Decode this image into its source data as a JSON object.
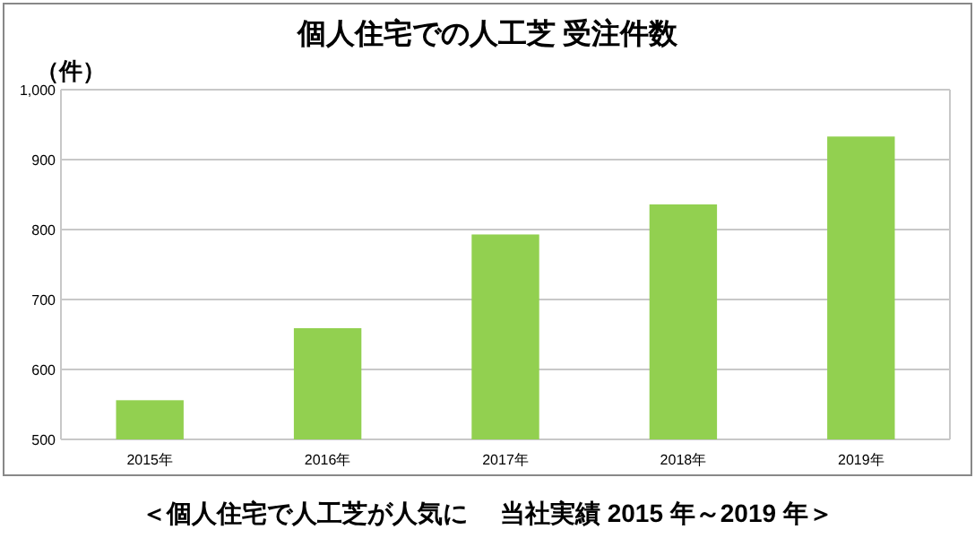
{
  "chart_data": {
    "type": "bar",
    "title": "個人住宅での人工芝 受注件数",
    "ylabel": "（件）",
    "categories": [
      "2015年",
      "2016年",
      "2017年",
      "2018年",
      "2019年"
    ],
    "values": [
      556,
      659,
      793,
      836,
      933
    ],
    "color": "#92d050",
    "ylim": [
      500,
      1000
    ],
    "yticks": [
      500,
      600,
      700,
      800,
      900,
      {
        "value": 1000,
        "label": "1,000"
      }
    ],
    "grid": "y",
    "annotations": [
      "＜個人住宅で人工芝が人気に　 当社実績 2015 年～2019 年＞"
    ]
  }
}
